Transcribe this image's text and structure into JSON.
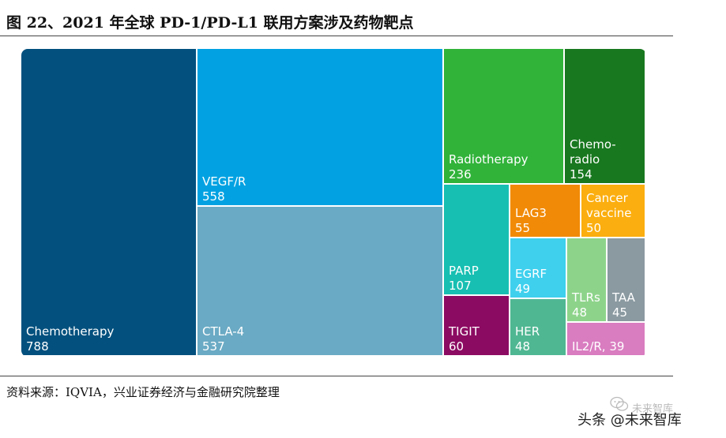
{
  "figure": {
    "title": "图 22、2021 年全球 PD-1/PD-L1 联用方案涉及药物靶点",
    "source": "资料来源：IQVIA，兴业证券经济与金融研究院整理"
  },
  "watermark": {
    "account": "未来智库",
    "platform": "头条 @未来智库"
  },
  "chart_data": {
    "type": "treemap",
    "title": "图 22、2021 年全球 PD-1/PD-L1 联用方案涉及药物靶点",
    "items": [
      {
        "label": "Chemotherapy",
        "lines": [
          "Chemotherapy"
        ],
        "value": 788,
        "color": "#03507e",
        "text_color": "#ffffff"
      },
      {
        "label": "VEGF/R",
        "lines": [
          "VEGF/R"
        ],
        "value": 558,
        "color": "#02a2e2",
        "text_color": "#ffffff"
      },
      {
        "label": "CTLA-4",
        "lines": [
          "CTLA-4"
        ],
        "value": 537,
        "color": "#6aaac4",
        "text_color": "#ffffff"
      },
      {
        "label": "Radiotherapy",
        "lines": [
          "Radiotherapy"
        ],
        "value": 236,
        "color": "#31b33a",
        "text_color": "#ffffff"
      },
      {
        "label": "Chemo-radio",
        "lines": [
          "Chemo-",
          "radio"
        ],
        "value": 154,
        "color": "#18781f",
        "text_color": "#ffffff"
      },
      {
        "label": "PARP",
        "lines": [
          "PARP"
        ],
        "value": 107,
        "color": "#17bfb2",
        "text_color": "#ffffff"
      },
      {
        "label": "LAG3",
        "lines": [
          "LAG3"
        ],
        "value": 55,
        "color": "#f18a06",
        "text_color": "#ffffff"
      },
      {
        "label": "Cancer vaccine",
        "lines": [
          "Cancer",
          "vaccine"
        ],
        "value": 50,
        "color": "#fbae0f",
        "text_color": "#ffffff"
      },
      {
        "label": "EGRF",
        "lines": [
          "EGRF"
        ],
        "value": 49,
        "color": "#3fd0ee",
        "text_color": "#ffffff"
      },
      {
        "label": "TLRs",
        "lines": [
          "TLRs"
        ],
        "value": 48,
        "color": "#8dd48a",
        "text_color": "#ffffff"
      },
      {
        "label": "TAA",
        "lines": [
          "TAA"
        ],
        "value": 45,
        "color": "#8b9aa1",
        "text_color": "#ffffff"
      },
      {
        "label": "TIGIT",
        "lines": [
          "TIGIT"
        ],
        "value": 60,
        "color": "#8c0b62",
        "text_color": "#ffffff"
      },
      {
        "label": "HER",
        "lines": [
          "HER"
        ],
        "value": 48,
        "color": "#50b793",
        "text_color": "#ffffff"
      },
      {
        "label": "IL2/R",
        "lines": [
          "IL2/R, 39"
        ],
        "value": 39,
        "color": "#d97cc0",
        "text_color": "#ffffff",
        "inline_value": true
      }
    ]
  }
}
